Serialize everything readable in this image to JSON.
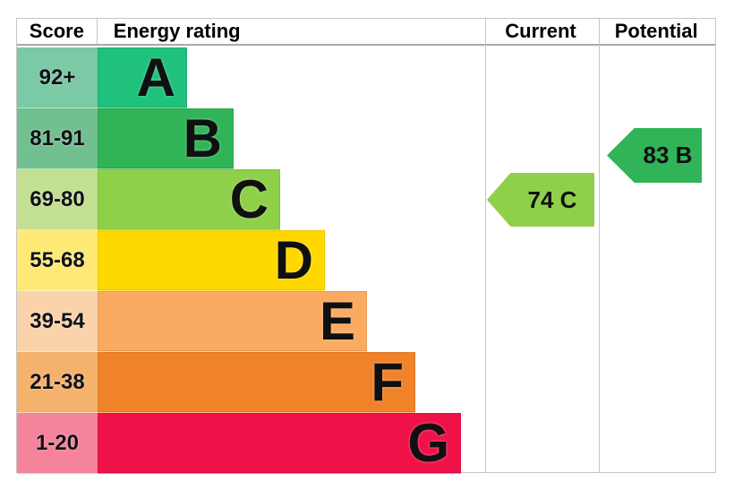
{
  "header": {
    "score": "Score",
    "rating": "Energy rating",
    "current": "Current",
    "potential": "Potential"
  },
  "bands": [
    {
      "letter": "A",
      "range": "92+",
      "bar_color": "#1fc17c",
      "range_bg": "#7cc9a6"
    },
    {
      "letter": "B",
      "range": "81-91",
      "bar_color": "#30b457",
      "range_bg": "#72c08f"
    },
    {
      "letter": "C",
      "range": "69-80",
      "bar_color": "#8fd04a",
      "range_bg": "#c3df92"
    },
    {
      "letter": "D",
      "range": "55-68",
      "bar_color": "#ffd800",
      "range_bg": "#fee876"
    },
    {
      "letter": "E",
      "range": "39-54",
      "bar_color": "#fbaa61",
      "range_bg": "#fbd3ab"
    },
    {
      "letter": "F",
      "range": "21-38",
      "bar_color": "#f0832a",
      "range_bg": "#f5b26d"
    },
    {
      "letter": "G",
      "range": "1-20",
      "bar_color": "#ef1249",
      "range_bg": "#f5839c"
    }
  ],
  "markers": {
    "current": {
      "label": "74 C",
      "score": 74,
      "rating": "C",
      "color": "#8fd04a"
    },
    "potential": {
      "label": "83 B",
      "score": 83,
      "rating": "B",
      "color": "#30b457"
    }
  },
  "chart_data": {
    "type": "bar",
    "orientation": "horizontal",
    "title": "Energy rating",
    "columns": [
      "Score",
      "Energy rating",
      "Current",
      "Potential"
    ],
    "categories": [
      "A",
      "B",
      "C",
      "D",
      "E",
      "F",
      "G"
    ],
    "score_ranges": [
      "92+",
      "81-91",
      "69-80",
      "55-68",
      "39-54",
      "21-38",
      "1-20"
    ],
    "bar_relative_widths": [
      100,
      152,
      204,
      254,
      301,
      355,
      406
    ],
    "bar_colors": [
      "#1fc17c",
      "#30b457",
      "#8fd04a",
      "#ffd800",
      "#fbaa61",
      "#f0832a",
      "#ef1249"
    ],
    "score_axis": {
      "min": 1,
      "max": 100,
      "higher_is_better": true
    },
    "markers": [
      {
        "name": "Current",
        "score": 74,
        "rating": "C",
        "color": "#8fd04a"
      },
      {
        "name": "Potential",
        "score": 83,
        "rating": "B",
        "color": "#30b457"
      }
    ],
    "legend_position": "none",
    "grid": "column-separators-only"
  }
}
